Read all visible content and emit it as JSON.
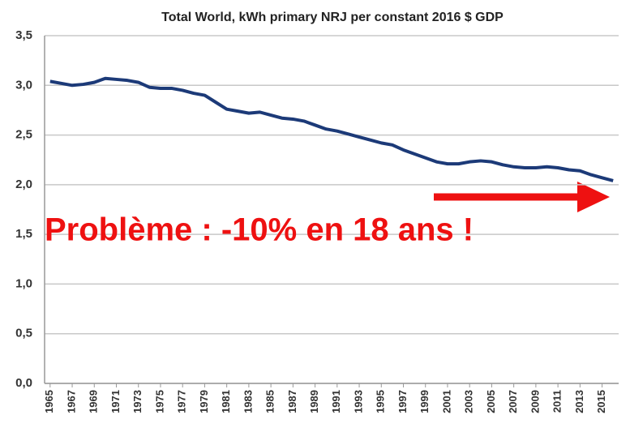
{
  "chart_data": {
    "type": "line",
    "title": "Total World, kWh primary NRJ per constant 2016 $ GDP",
    "annotation": "Problème : -10% en 18 ans !",
    "x": [
      1965,
      1966,
      1967,
      1968,
      1969,
      1970,
      1971,
      1972,
      1973,
      1974,
      1975,
      1976,
      1977,
      1978,
      1979,
      1980,
      1981,
      1982,
      1983,
      1984,
      1985,
      1986,
      1987,
      1988,
      1989,
      1990,
      1991,
      1992,
      1993,
      1994,
      1995,
      1996,
      1997,
      1998,
      1999,
      2000,
      2001,
      2002,
      2003,
      2004,
      2005,
      2006,
      2007,
      2008,
      2009,
      2010,
      2011,
      2012,
      2013,
      2014,
      2015,
      2016
    ],
    "values": [
      3.04,
      3.02,
      3.0,
      3.01,
      3.03,
      3.07,
      3.06,
      3.05,
      3.03,
      2.98,
      2.97,
      2.97,
      2.95,
      2.92,
      2.9,
      2.83,
      2.76,
      2.74,
      2.72,
      2.73,
      2.7,
      2.67,
      2.66,
      2.64,
      2.6,
      2.56,
      2.54,
      2.51,
      2.48,
      2.45,
      2.42,
      2.4,
      2.35,
      2.31,
      2.27,
      2.23,
      2.21,
      2.21,
      2.23,
      2.24,
      2.23,
      2.2,
      2.18,
      2.17,
      2.17,
      2.18,
      2.17,
      2.15,
      2.14,
      2.1,
      2.07,
      2.04
    ],
    "color": "#1c3a78",
    "annotation_color": "#ee1111",
    "xlim": [
      1964.5,
      2016.5
    ],
    "xticks": [
      1965,
      1967,
      1969,
      1971,
      1973,
      1975,
      1977,
      1979,
      1981,
      1983,
      1985,
      1987,
      1989,
      1991,
      1993,
      1995,
      1997,
      1999,
      2001,
      2003,
      2005,
      2007,
      2009,
      2011,
      2013,
      2015
    ],
    "ylim": [
      0,
      3.5
    ],
    "yticks": [
      {
        "value": 0,
        "label": "0,0"
      },
      {
        "value": 0.5,
        "label": "0,5"
      },
      {
        "value": 1,
        "label": "1,0"
      },
      {
        "value": 1.5,
        "label": "1,5"
      },
      {
        "value": 2,
        "label": "2,0"
      },
      {
        "value": 2.5,
        "label": "2,5"
      },
      {
        "value": 3,
        "label": "3,0"
      },
      {
        "value": 3.5,
        "label": "3,5"
      }
    ],
    "grid": true
  }
}
